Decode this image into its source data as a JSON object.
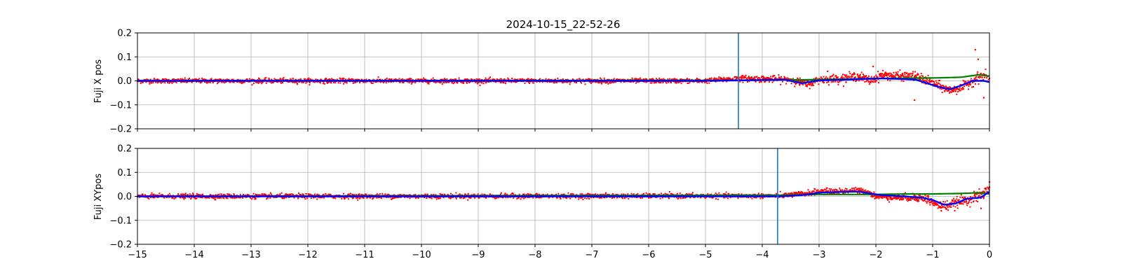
{
  "title": "2024-10-15_22-52-26",
  "colors": {
    "scatter": "#ff0000",
    "blue_line": "#0000ff",
    "green_line": "#008000",
    "marker_line": "#1f77b4",
    "grid": "#b0b0b0"
  },
  "chart_data": [
    {
      "type": "scatter",
      "ylabel": "Fuji X pos",
      "xlim": [
        -15,
        0
      ],
      "ylim": [
        -0.2,
        0.2
      ],
      "xticks": [
        -15,
        -14,
        -13,
        -12,
        -11,
        -10,
        -9,
        -8,
        -7,
        -6,
        -5,
        -4,
        -3,
        -2,
        -1,
        0
      ],
      "yticks": [
        -0.2,
        -0.1,
        0.0,
        0.1,
        0.2
      ],
      "grid": true,
      "show_xtick_labels": false,
      "vertical_marker_x": -4.42,
      "red_profile": [
        [
          -15,
          0
        ],
        [
          -5,
          0
        ],
        [
          -4.4,
          0.01
        ],
        [
          -3.5,
          0.005
        ],
        [
          -3.2,
          -0.015
        ],
        [
          -3,
          0.005
        ],
        [
          -2.6,
          0.01
        ],
        [
          -2.3,
          0.02
        ],
        [
          -2.1,
          0.0
        ],
        [
          -1.9,
          0.025
        ],
        [
          -1.6,
          0.02
        ],
        [
          -1.3,
          0.02
        ],
        [
          -1.1,
          0.0
        ],
        [
          -0.9,
          -0.02
        ],
        [
          -0.7,
          -0.04
        ],
        [
          -0.5,
          -0.03
        ],
        [
          -0.3,
          0.0
        ],
        [
          -0.15,
          0.02
        ],
        [
          0,
          0.01
        ]
      ],
      "red_noise": [
        [
          -15,
          0.008
        ],
        [
          -5,
          0.008
        ],
        [
          -4.4,
          0.01
        ],
        [
          -2.5,
          0.015
        ],
        [
          -1.5,
          0.015
        ],
        [
          -0.5,
          0.015
        ],
        [
          0,
          0.02
        ]
      ],
      "red_outliers": [
        [
          -1.32,
          -0.08
        ],
        [
          -0.25,
          0.13
        ],
        [
          -0.2,
          0.09
        ],
        [
          -0.1,
          -0.07
        ],
        [
          -2.05,
          0.06
        ],
        [
          -2.85,
          0.04
        ]
      ],
      "blue_line": [
        [
          -15,
          0
        ],
        [
          -5,
          0
        ],
        [
          -4.4,
          0.002
        ],
        [
          -3.6,
          0.005
        ],
        [
          -3.3,
          -0.01
        ],
        [
          -3.0,
          0.002
        ],
        [
          -2.5,
          0.005
        ],
        [
          -2.2,
          0.008
        ],
        [
          -1.9,
          0.01
        ],
        [
          -1.6,
          0.008
        ],
        [
          -1.3,
          0.005
        ],
        [
          -1.1,
          -0.01
        ],
        [
          -0.9,
          -0.025
        ],
        [
          -0.7,
          -0.035
        ],
        [
          -0.5,
          -0.02
        ],
        [
          -0.3,
          0.0
        ],
        [
          -0.1,
          0.0
        ],
        [
          0,
          -0.005
        ]
      ],
      "green_line": [
        [
          -15,
          0
        ],
        [
          -4.4,
          0.002
        ],
        [
          -3,
          0.005
        ],
        [
          -2,
          0.01
        ],
        [
          -1,
          0.012
        ],
        [
          -0.5,
          0.015
        ],
        [
          -0.2,
          0.025
        ],
        [
          0,
          0.02
        ]
      ]
    },
    {
      "type": "scatter",
      "ylabel": "Fuji XYpos",
      "xlim": [
        -15,
        0
      ],
      "ylim": [
        -0.2,
        0.2
      ],
      "xticks": [
        -15,
        -14,
        -13,
        -12,
        -11,
        -10,
        -9,
        -8,
        -7,
        -6,
        -5,
        -4,
        -3,
        -2,
        -1,
        0
      ],
      "yticks": [
        -0.2,
        -0.1,
        0.0,
        0.1,
        0.2
      ],
      "grid": true,
      "show_xtick_labels": true,
      "vertical_marker_x": -3.73,
      "red_profile": [
        [
          -15,
          0
        ],
        [
          -3.7,
          0.002
        ],
        [
          -3.3,
          0.01
        ],
        [
          -3,
          0.02
        ],
        [
          -2.7,
          0.02
        ],
        [
          -2.4,
          0.025
        ],
        [
          -2.15,
          0.02
        ],
        [
          -2,
          0.0
        ],
        [
          -1.6,
          -0.005
        ],
        [
          -1.3,
          -0.005
        ],
        [
          -1.1,
          -0.01
        ],
        [
          -0.95,
          -0.035
        ],
        [
          -0.75,
          -0.04
        ],
        [
          -0.5,
          -0.02
        ],
        [
          -0.3,
          -0.01
        ],
        [
          -0.1,
          0.01
        ],
        [
          0,
          0.04
        ]
      ],
      "red_noise": [
        [
          -15,
          0.008
        ],
        [
          -3.7,
          0.008
        ],
        [
          -3,
          0.01
        ],
        [
          -2,
          0.01
        ],
        [
          -1,
          0.015
        ],
        [
          0,
          0.02
        ]
      ],
      "red_outliers": [
        [
          -0.85,
          -0.06
        ],
        [
          -0.15,
          -0.05
        ],
        [
          0,
          0.06
        ]
      ],
      "blue_line": [
        [
          -15,
          0
        ],
        [
          -3.7,
          0.0
        ],
        [
          -3.3,
          0.005
        ],
        [
          -3,
          0.015
        ],
        [
          -2.7,
          0.018
        ],
        [
          -2.3,
          0.02
        ],
        [
          -2.1,
          0.012
        ],
        [
          -1.9,
          0.005
        ],
        [
          -1.5,
          0.0
        ],
        [
          -1.2,
          -0.005
        ],
        [
          -1.0,
          -0.015
        ],
        [
          -0.8,
          -0.035
        ],
        [
          -0.6,
          -0.03
        ],
        [
          -0.4,
          -0.01
        ],
        [
          -0.15,
          -0.005
        ],
        [
          0,
          0.02
        ]
      ],
      "green_line": [
        [
          -15,
          0
        ],
        [
          -3.7,
          0.005
        ],
        [
          -3,
          0.008
        ],
        [
          -2,
          0.008
        ],
        [
          -1.5,
          0.01
        ],
        [
          -1,
          0.01
        ],
        [
          -0.5,
          0.012
        ],
        [
          -0.2,
          0.015
        ],
        [
          0,
          0.01
        ]
      ]
    }
  ]
}
